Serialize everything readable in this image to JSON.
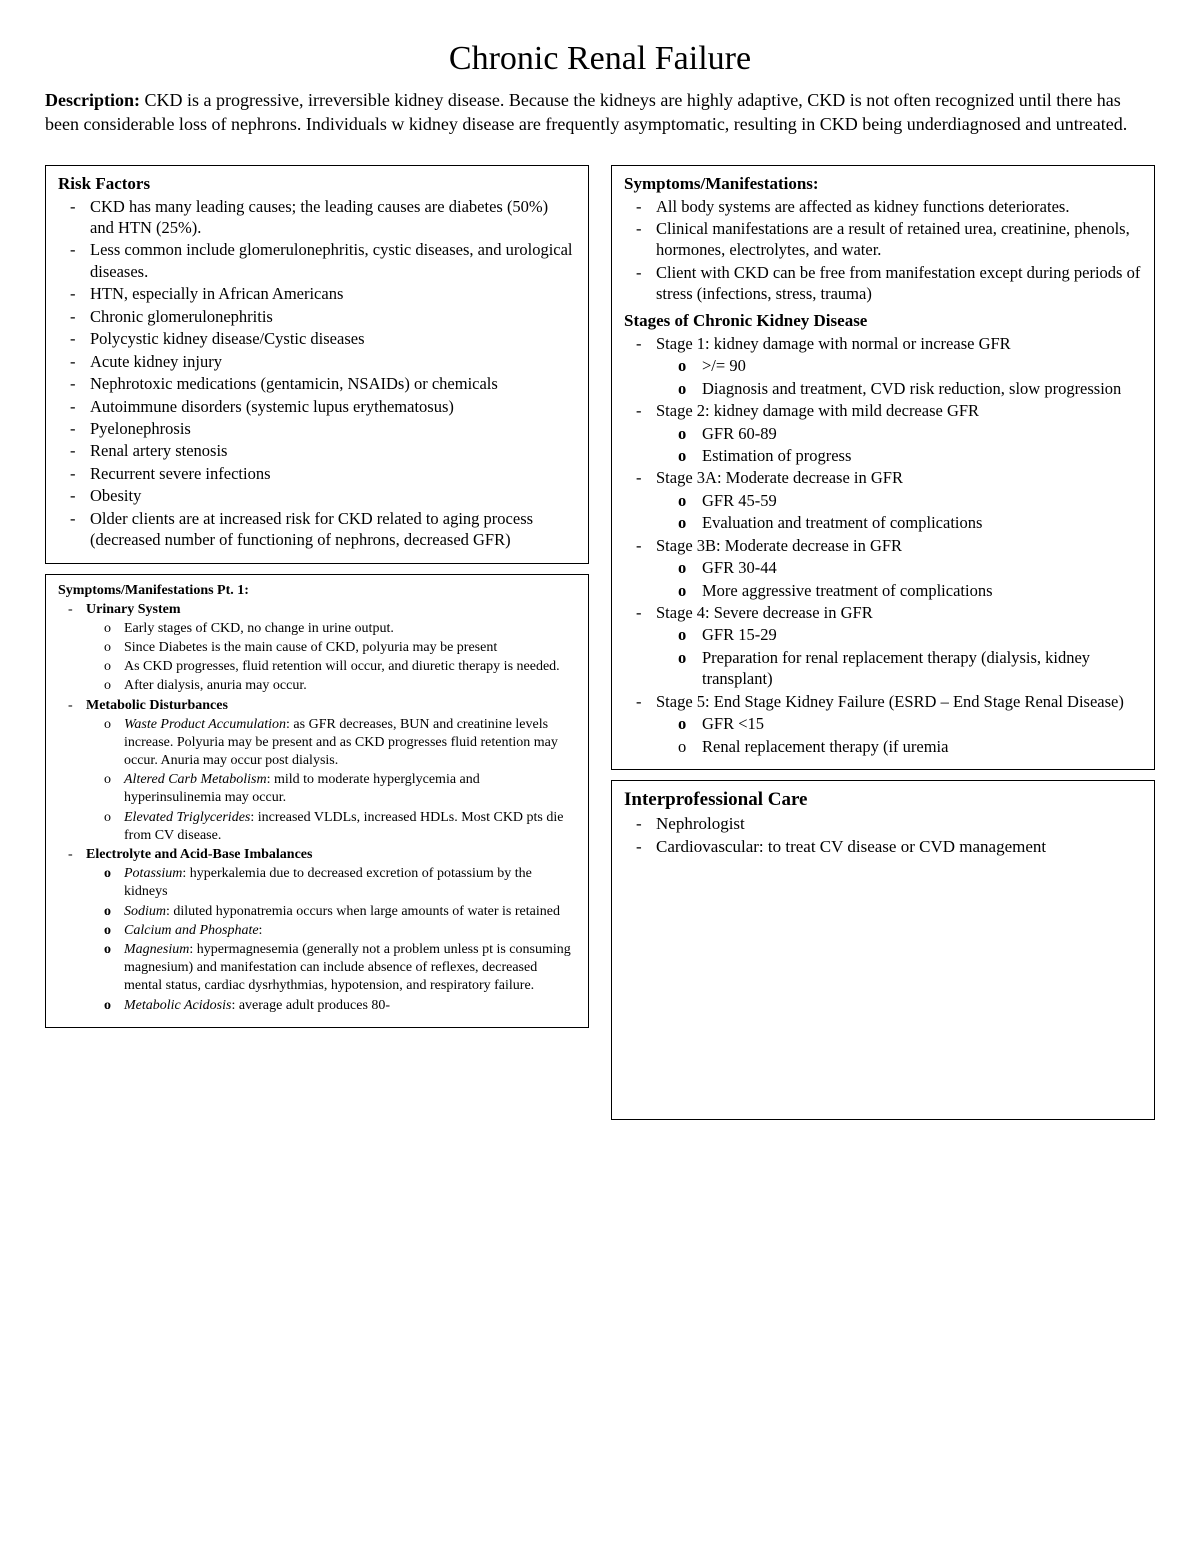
{
  "title": "Chronic Renal Failure",
  "description_label": "Description:",
  "description_text": " CKD is a progressive, irreversible kidney disease.  Because the kidneys are highly adaptive, CKD is not often recognized until there has been considerable loss of nephrons. Individuals w kidney disease are frequently asymptomatic, resulting in CKD being underdiagnosed and untreated.",
  "risk": {
    "title": "Risk Factors",
    "items": [
      "CKD has many leading causes; the leading causes are diabetes (50%) and HTN (25%).",
      "Less common include glomerulonephritis, cystic diseases, and urological diseases.",
      "HTN, especially in African Americans",
      "Chronic glomerulonephritis",
      "Polycystic kidney disease/Cystic diseases",
      "Acute kidney injury",
      "Nephrotoxic medications (gentamicin, NSAIDs) or chemicals",
      "Autoimmune disorders (systemic lupus erythematosus)",
      "Pyelonephrosis",
      "Renal artery stenosis",
      "Recurrent severe infections",
      "Obesity",
      "Older clients are at increased risk for CKD related to aging process (decreased number of functioning of nephrons, decreased GFR)"
    ]
  },
  "symptoms_pt1": {
    "title": "Symptoms/Manifestations Pt. 1:",
    "urinary_label": "Urinary System",
    "urinary": [
      "Early stages of CKD, no change in urine output.",
      "Since Diabetes is the main cause of CKD, polyuria may be present",
      "As CKD progresses, fluid retention will occur, and diuretic therapy is needed.",
      "After dialysis, anuria may occur."
    ],
    "metabolic_label": "Metabolic Disturbances",
    "metabolic": [
      {
        "lead": "Waste Product Accumulation",
        "rest": ": as GFR decreases, BUN and creatinine levels increase. Polyuria may be present and as CKD progresses fluid retention may occur. Anuria may occur post dialysis."
      },
      {
        "lead": "Altered Carb Metabolism",
        "rest": ": mild to moderate hyperglycemia and hyperinsulinemia may occur."
      },
      {
        "lead": "Elevated Triglycerides",
        "rest": ": increased VLDLs, increased HDLs. Most CKD pts die from CV disease."
      }
    ],
    "electro_label": "Electrolyte and Acid-Base Imbalances",
    "electro": [
      {
        "lead": "Potassium",
        "rest": ": hyperkalemia due to decreased excretion of potassium by the kidneys"
      },
      {
        "lead": "Sodium",
        "rest": ": diluted hyponatremia occurs when large amounts of water is retained"
      },
      {
        "lead": "Calcium and Phosphate",
        "rest": ":"
      },
      {
        "lead": "Magnesium",
        "rest": ": hypermagnesemia (generally not a problem unless pt is consuming magnesium) and manifestation can include absence of reflexes, decreased mental status, cardiac dysrhythmias, hypotension, and respiratory failure."
      },
      {
        "lead": "Metabolic Acidosis",
        "rest": ": average adult produces 80-"
      }
    ]
  },
  "symptoms_top": {
    "title": "Symptoms/Manifestations:",
    "items": [
      "All body systems are affected as kidney functions deteriorates.",
      "Clinical manifestations are a result of retained urea, creatinine, phenols, hormones, electrolytes, and water.",
      "Client with CKD can be free from manifestation except during periods of stress (infections, stress, trauma)"
    ],
    "stages_title": "Stages of Chronic Kidney Disease",
    "stages": [
      {
        "head": "Stage 1: kidney damage with normal or increase GFR",
        "subs": [
          ">/= 90",
          "Diagnosis and treatment, CVD risk reduction, slow progression"
        ]
      },
      {
        "head": "Stage 2: kidney damage with mild decrease GFR",
        "subs": [
          "GFR 60-89",
          "Estimation of progress"
        ]
      },
      {
        "head": "Stage 3A: Moderate decrease in GFR",
        "subs": [
          "GFR 45-59",
          "Evaluation and treatment of complications"
        ]
      },
      {
        "head": "Stage 3B: Moderate decrease in GFR",
        "subs": [
          "GFR 30-44",
          "More aggressive treatment of complications"
        ]
      },
      {
        "head": "Stage 4: Severe decrease in GFR",
        "subs": [
          "GFR 15-29",
          "Preparation for renal replacement therapy (dialysis, kidney transplant)"
        ]
      },
      {
        "head": "Stage 5: End Stage Kidney Failure (ESRD – End Stage Renal Disease)",
        "subs": [
          "GFR <15",
          "Renal replacement therapy (if uremia"
        ]
      }
    ]
  },
  "care": {
    "title": "Interprofessional Care",
    "items": [
      "Nephrologist",
      "Cardiovascular: to treat CV disease or CVD management"
    ]
  }
}
